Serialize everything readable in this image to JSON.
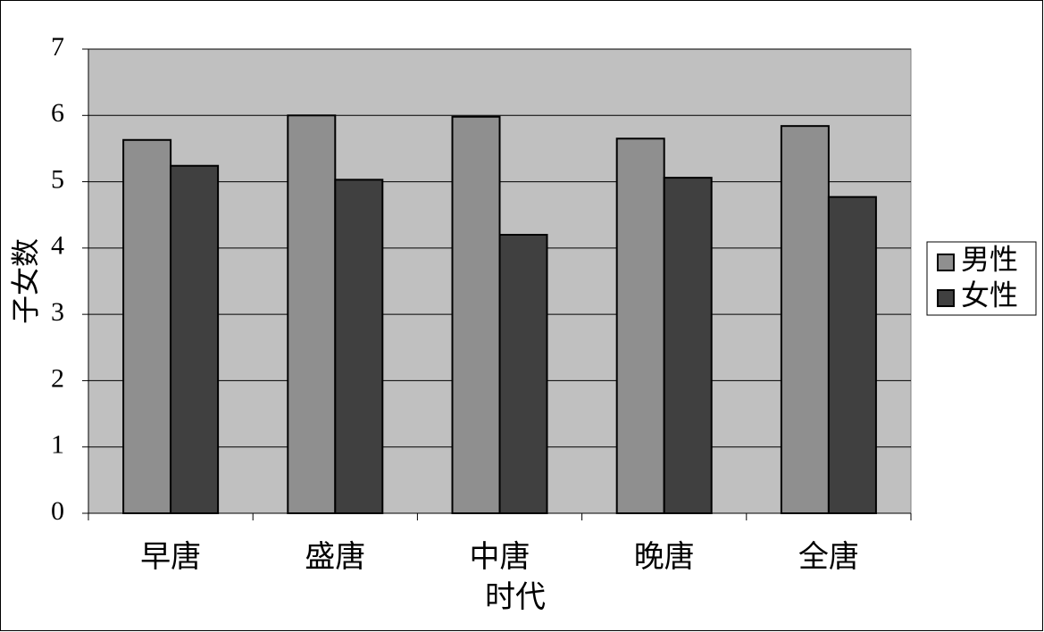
{
  "chart_data": {
    "type": "bar",
    "x_label": "时代",
    "y_label": "子女数",
    "categories": [
      "早唐",
      "盛唐",
      "中唐",
      "晚唐",
      "全唐"
    ],
    "series": [
      {
        "name": "男性",
        "color": "#8f8f8f",
        "values": [
          5.63,
          6.0,
          5.98,
          5.65,
          5.84
        ]
      },
      {
        "name": "女性",
        "color": "#404040",
        "values": [
          5.24,
          5.03,
          4.2,
          5.06,
          4.77
        ]
      }
    ],
    "ylim": [
      0,
      7
    ],
    "yticks": [
      0,
      1,
      2,
      3,
      4,
      5,
      6,
      7
    ],
    "grid": true,
    "legend": "right"
  }
}
